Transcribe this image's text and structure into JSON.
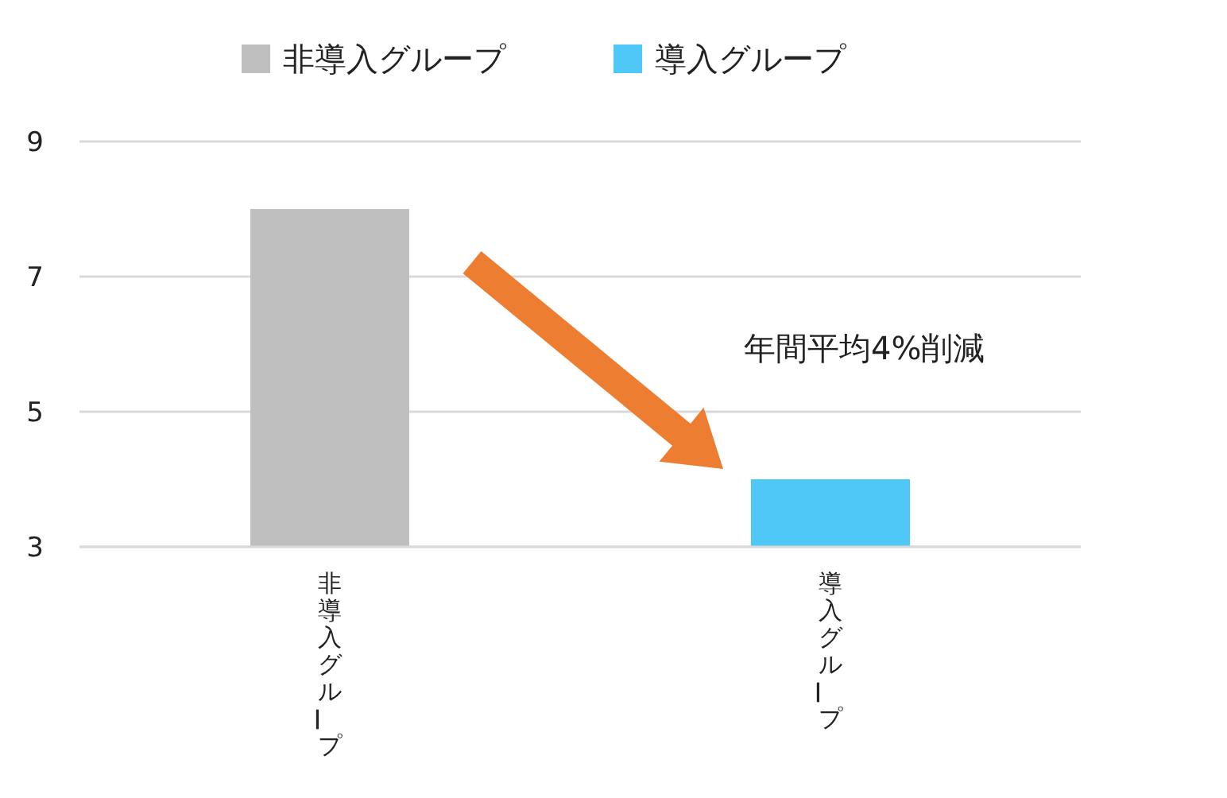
{
  "chart_data": {
    "type": "bar",
    "categories": [
      "非導入グループ",
      "導入グループ"
    ],
    "series": [
      {
        "name": "非導入グループ",
        "color": "#bfbfbf",
        "values": [
          8,
          null
        ]
      },
      {
        "name": "導入グループ",
        "color": "#4fc8f8",
        "values": [
          null,
          4
        ]
      }
    ],
    "ylim": [
      3,
      9
    ],
    "yticks": [
      3,
      5,
      7,
      9
    ],
    "grid": "y",
    "legend": "top",
    "annotations": [
      "年間平均4%削減"
    ]
  }
}
